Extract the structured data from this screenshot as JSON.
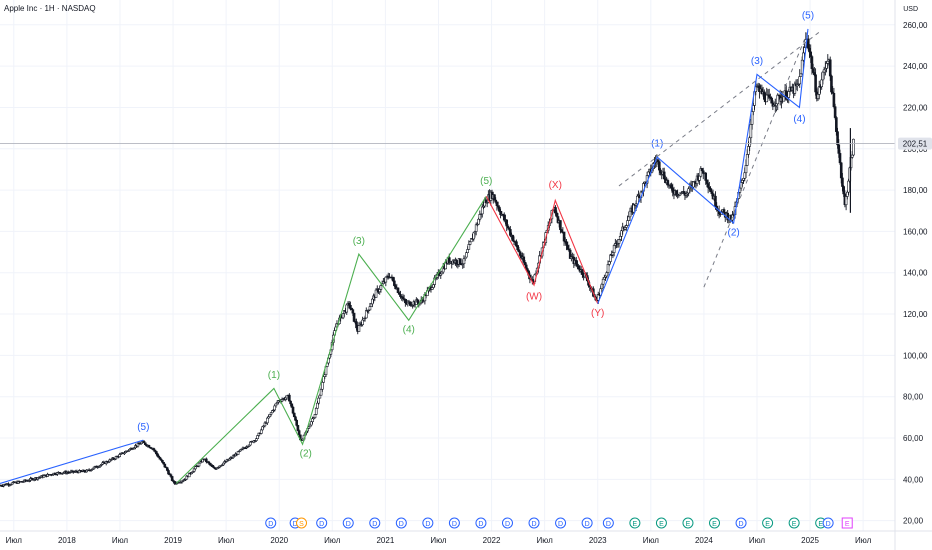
{
  "header": {
    "symbol": "Apple Inc · 1H · NASDAQ",
    "currency": "USD"
  },
  "colors": {
    "candle": "#131722",
    "green_wave": "#4caf50",
    "blue_wave": "#2962ff",
    "red_wave": "#f23645",
    "grid": "#f0f3fa",
    "axis_text": "#131722",
    "price_tag_bg": "#e0e3eb",
    "dashed": "#787b86"
  },
  "chart_data": {
    "type": "candlestick",
    "title": "Apple Inc · 1H · NASDAQ",
    "xlim": [
      2017.37,
      2025.8
    ],
    "ylim": [
      15,
      272
    ],
    "y_axis": {
      "unit": "USD",
      "ticks": [
        20,
        40,
        60,
        80,
        100,
        120,
        140,
        160,
        180,
        200,
        220,
        240,
        260
      ],
      "labels": [
        "20,00",
        "40,00",
        "60,00",
        "80,00",
        "100,00",
        "120,00",
        "140,00",
        "160,00",
        "180,00",
        "200,00",
        "220,00",
        "240,00",
        "260,00"
      ]
    },
    "x_axis": {
      "ticks": [
        {
          "x": 2017.5,
          "label": "Июл"
        },
        {
          "x": 2018.0,
          "label": "2018"
        },
        {
          "x": 2018.5,
          "label": "Июл"
        },
        {
          "x": 2019.0,
          "label": "2019"
        },
        {
          "x": 2019.5,
          "label": "Июл"
        },
        {
          "x": 2020.0,
          "label": "2020"
        },
        {
          "x": 2020.5,
          "label": "Июл"
        },
        {
          "x": 2021.0,
          "label": "2021"
        },
        {
          "x": 2021.5,
          "label": "Июл"
        },
        {
          "x": 2022.0,
          "label": "2022"
        },
        {
          "x": 2022.5,
          "label": "Июл"
        },
        {
          "x": 2023.0,
          "label": "2023"
        },
        {
          "x": 2023.5,
          "label": "Июл"
        },
        {
          "x": 2024.0,
          "label": "2024"
        },
        {
          "x": 2024.5,
          "label": "Июл"
        },
        {
          "x": 2025.0,
          "label": "2025"
        },
        {
          "x": 2025.5,
          "label": "Июл"
        }
      ]
    },
    "current_price": {
      "value": 202.51,
      "label": "202,51"
    },
    "price_path": [
      [
        2017.37,
        37
      ],
      [
        2017.6,
        39
      ],
      [
        2017.9,
        43
      ],
      [
        2018.2,
        44
      ],
      [
        2018.45,
        50
      ],
      [
        2018.72,
        58
      ],
      [
        2018.82,
        55
      ],
      [
        2018.95,
        45
      ],
      [
        2019.02,
        38
      ],
      [
        2019.12,
        40
      ],
      [
        2019.3,
        50
      ],
      [
        2019.4,
        45
      ],
      [
        2019.55,
        50
      ],
      [
        2019.8,
        60
      ],
      [
        2020.0,
        78
      ],
      [
        2020.1,
        80
      ],
      [
        2020.22,
        58
      ],
      [
        2020.35,
        72
      ],
      [
        2020.55,
        115
      ],
      [
        2020.67,
        125
      ],
      [
        2020.75,
        112
      ],
      [
        2020.92,
        130
      ],
      [
        2021.05,
        139
      ],
      [
        2021.2,
        125
      ],
      [
        2021.35,
        126
      ],
      [
        2021.6,
        146
      ],
      [
        2021.75,
        145
      ],
      [
        2021.95,
        175
      ],
      [
        2022.02,
        178
      ],
      [
        2022.2,
        158
      ],
      [
        2022.4,
        135
      ],
      [
        2022.45,
        145
      ],
      [
        2022.6,
        172
      ],
      [
        2022.75,
        148
      ],
      [
        2022.9,
        138
      ],
      [
        2023.0,
        126
      ],
      [
        2023.15,
        150
      ],
      [
        2023.35,
        172
      ],
      [
        2023.56,
        195
      ],
      [
        2023.7,
        180
      ],
      [
        2023.85,
        178
      ],
      [
        2024.0,
        190
      ],
      [
        2024.15,
        170
      ],
      [
        2024.28,
        166
      ],
      [
        2024.4,
        190
      ],
      [
        2024.5,
        230
      ],
      [
        2024.65,
        222
      ],
      [
        2024.9,
        230
      ],
      [
        2024.98,
        255
      ],
      [
        2025.08,
        225
      ],
      [
        2025.18,
        245
      ],
      [
        2025.3,
        190
      ],
      [
        2025.34,
        172
      ],
      [
        2025.42,
        203
      ]
    ],
    "wave_lines": [
      {
        "color": "green",
        "points": [
          [
            2019.03,
            38
          ],
          [
            2019.95,
            84
          ],
          [
            2020.22,
            57
          ],
          [
            2020.75,
            149
          ],
          [
            2021.22,
            117
          ],
          [
            2021.95,
            177
          ]
        ]
      },
      {
        "color": "blue",
        "points": [
          [
            2017.37,
            38
          ],
          [
            2018.72,
            59
          ]
        ]
      },
      {
        "color": "red",
        "points": [
          [
            2021.95,
            177
          ],
          [
            2022.4,
            134
          ],
          [
            2022.6,
            175
          ],
          [
            2023.0,
            125
          ]
        ]
      },
      {
        "color": "blue",
        "points": [
          [
            2023.0,
            125
          ],
          [
            2023.56,
            196
          ],
          [
            2024.28,
            164
          ],
          [
            2024.5,
            236
          ],
          [
            2024.9,
            220
          ],
          [
            2024.98,
            258
          ]
        ]
      }
    ],
    "dashed_lines": [
      {
        "points": [
          [
            2023.2,
            182
          ],
          [
            2025.1,
            257
          ]
        ]
      },
      {
        "points": [
          [
            2024.0,
            133
          ],
          [
            2024.98,
            257
          ]
        ]
      }
    ],
    "wave_labels": [
      {
        "text": "(5)",
        "x": 2018.72,
        "y": 64,
        "color": "blue"
      },
      {
        "text": "(1)",
        "x": 2019.95,
        "y": 89,
        "color": "green"
      },
      {
        "text": "(2)",
        "x": 2020.25,
        "y": 51,
        "color": "green"
      },
      {
        "text": "(3)",
        "x": 2020.75,
        "y": 154,
        "color": "green"
      },
      {
        "text": "(4)",
        "x": 2021.22,
        "y": 111,
        "color": "green"
      },
      {
        "text": "(5)",
        "x": 2021.95,
        "y": 183,
        "color": "green"
      },
      {
        "text": "(X)",
        "x": 2022.6,
        "y": 181,
        "color": "red"
      },
      {
        "text": "(W)",
        "x": 2022.4,
        "y": 127,
        "color": "red"
      },
      {
        "text": "(Y)",
        "x": 2023.0,
        "y": 119,
        "color": "red"
      },
      {
        "text": "(1)",
        "x": 2023.56,
        "y": 201,
        "color": "blue"
      },
      {
        "text": "(2)",
        "x": 2024.28,
        "y": 158,
        "color": "blue"
      },
      {
        "text": "(3)",
        "x": 2024.5,
        "y": 241,
        "color": "blue"
      },
      {
        "text": "(4)",
        "x": 2024.9,
        "y": 213,
        "color": "blue"
      },
      {
        "text": "(5)",
        "x": 2024.98,
        "y": 263,
        "color": "blue"
      }
    ],
    "event_markers": [
      {
        "x": 2019.92,
        "kind": "D"
      },
      {
        "x": 2020.15,
        "kind": "D"
      },
      {
        "x": 2020.21,
        "kind": "S"
      },
      {
        "x": 2020.4,
        "kind": "D"
      },
      {
        "x": 2020.65,
        "kind": "D"
      },
      {
        "x": 2020.9,
        "kind": "D"
      },
      {
        "x": 2021.15,
        "kind": "D"
      },
      {
        "x": 2021.4,
        "kind": "D"
      },
      {
        "x": 2021.65,
        "kind": "D"
      },
      {
        "x": 2021.9,
        "kind": "D"
      },
      {
        "x": 2022.15,
        "kind": "D"
      },
      {
        "x": 2022.4,
        "kind": "D"
      },
      {
        "x": 2022.65,
        "kind": "D"
      },
      {
        "x": 2022.9,
        "kind": "D"
      },
      {
        "x": 2023.1,
        "kind": "D"
      },
      {
        "x": 2023.35,
        "kind": "E"
      },
      {
        "x": 2023.6,
        "kind": "E"
      },
      {
        "x": 2023.85,
        "kind": "E"
      },
      {
        "x": 2024.1,
        "kind": "E"
      },
      {
        "x": 2024.35,
        "kind": "D"
      },
      {
        "x": 2024.6,
        "kind": "E"
      },
      {
        "x": 2024.85,
        "kind": "E"
      },
      {
        "x": 2025.1,
        "kind": "E"
      },
      {
        "x": 2025.17,
        "kind": "D"
      },
      {
        "x": 2025.35,
        "kind": "E-upcoming"
      }
    ]
  }
}
